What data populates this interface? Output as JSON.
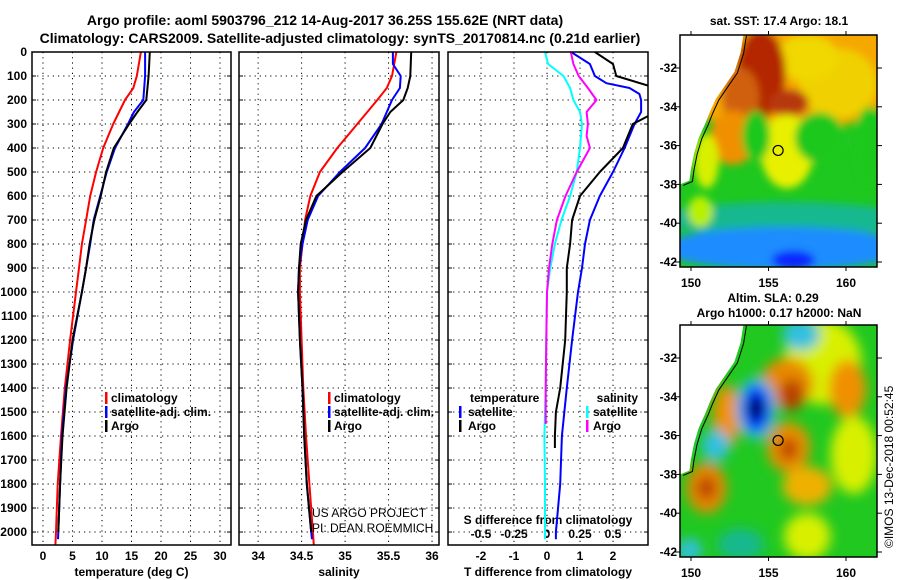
{
  "title": {
    "line1": "Argo profile: aoml 5903796_212 14-Aug-2017 36.25S 155.62E (NRT data)",
    "line2": "Climatology: CARS2009. Satellite-adjusted climatology: synTS_20170814.nc (0.21d earlier)"
  },
  "chart_data": [
    {
      "type": "line",
      "xlabel": "temperature (deg C)",
      "ylabel": "",
      "xlim": [
        -1.86,
        31.86
      ],
      "ylim": [
        2054,
        0
      ],
      "xticks": [
        "0",
        "5",
        "10",
        "15",
        "20",
        "25",
        "30"
      ],
      "yticks": [
        "0",
        "100",
        "200",
        "300",
        "400",
        "500",
        "600",
        "700",
        "800",
        "900",
        "1000",
        "1100",
        "1200",
        "1300",
        "1400",
        "1500",
        "1600",
        "1700",
        "1800",
        "1900",
        "2000"
      ],
      "grid": true,
      "legend_placement": "lower-left",
      "legend": [
        "climatology",
        "satellite-adj. clim.",
        "Argo"
      ],
      "series": [
        {
          "name": "climatology",
          "color": "#ff0000",
          "depth": [
            0,
            100,
            150,
            200,
            300,
            400,
            500,
            600,
            700,
            800,
            900,
            1000,
            1200,
            1400,
            1600,
            1800,
            2000,
            2054
          ],
          "values": [
            16.6,
            15.9,
            15.3,
            13.9,
            11.9,
            10.2,
            9.0,
            8.0,
            7.3,
            6.6,
            6.1,
            5.6,
            4.6,
            3.7,
            3.05,
            2.5,
            2.2,
            2.1
          ]
        },
        {
          "name": "satellite-adj. clim.",
          "color": "#0000ff",
          "depth": [
            0,
            100,
            200,
            250,
            300,
            400,
            500,
            600,
            700,
            800,
            900,
            1000,
            1200,
            1400,
            1600,
            1800,
            2000,
            2030
          ],
          "values": [
            17.3,
            17.3,
            17.0,
            15.4,
            14.4,
            12.2,
            10.8,
            9.7,
            8.6,
            8.0,
            7.3,
            6.6,
            5.1,
            3.9,
            3.2,
            2.9,
            2.6,
            2.55
          ]
        },
        {
          "name": "Argo",
          "color": "#000000",
          "depth": [
            0,
            100,
            200,
            250,
            300,
            400,
            500,
            600,
            700,
            800,
            900,
            1000,
            1200,
            1400,
            1600,
            1800,
            2000
          ],
          "values": [
            18.1,
            17.9,
            17.5,
            16.0,
            14.6,
            12.0,
            10.7,
            9.8,
            8.7,
            7.9,
            7.3,
            6.6,
            5.0,
            4.0,
            3.3,
            2.9,
            2.6
          ]
        }
      ]
    },
    {
      "type": "line",
      "xlabel": "salinity",
      "ylabel": "",
      "xlim": [
        33.78,
        36.08
      ],
      "ylim": [
        2054,
        0
      ],
      "xticks": [
        "34",
        "34.5",
        "35",
        "35.5",
        "36"
      ],
      "grid": true,
      "legend_placement": "lower-right",
      "legend": [
        "climatology",
        "satellite-adj. clim.",
        "Argo"
      ],
      "series": [
        {
          "name": "climatology",
          "color": "#ff0000",
          "depth": [
            0,
            100,
            150,
            200,
            300,
            400,
            500,
            600,
            700,
            800,
            900,
            1000,
            1200,
            1400,
            1600,
            1800,
            2000,
            2054
          ],
          "values": [
            35.59,
            35.54,
            35.48,
            35.37,
            35.14,
            34.91,
            34.71,
            34.6,
            34.54,
            34.51,
            34.48,
            34.48,
            34.5,
            34.52,
            34.55,
            34.59,
            34.63,
            34.64
          ]
        },
        {
          "name": "satellite-adj. clim.",
          "color": "#0000ff",
          "depth": [
            0,
            50,
            100,
            150,
            200,
            300,
            400,
            500,
            600,
            700,
            800,
            900,
            1000,
            1200,
            1400,
            1600,
            1800,
            2000,
            2030
          ],
          "values": [
            35.55,
            35.55,
            35.64,
            35.63,
            35.54,
            35.42,
            35.23,
            34.94,
            34.69,
            34.57,
            34.51,
            34.47,
            34.46,
            34.48,
            34.51,
            34.53,
            34.56,
            34.61,
            34.62
          ]
        },
        {
          "name": "Argo",
          "color": "#000000",
          "depth": [
            0,
            100,
            150,
            200,
            250,
            300,
            400,
            500,
            600,
            700,
            800,
            900,
            1000,
            1200,
            1400,
            1600,
            1800,
            2000
          ],
          "values": [
            35.76,
            35.75,
            35.72,
            35.67,
            35.52,
            35.43,
            35.29,
            34.97,
            34.67,
            34.55,
            34.49,
            34.47,
            34.46,
            34.48,
            34.51,
            34.53,
            34.56,
            34.61
          ]
        }
      ]
    },
    {
      "type": "line",
      "xlabel": "T difference from climatology",
      "secondary_xlabel": "S difference from climatology",
      "xlim": [
        -3,
        3.06
      ],
      "secondary_xlim": [
        -0.75,
        0.765
      ],
      "ylim": [
        2054,
        0
      ],
      "xticks": [
        "-2",
        "-1",
        "0",
        "1",
        "2"
      ],
      "secondary_xticks": [
        "-0.5",
        "-0.25",
        "0",
        "0.25",
        "0.5"
      ],
      "grid": true,
      "legend_placement": "lower",
      "legend_groups": [
        {
          "title": "temperature",
          "items": [
            "satellite",
            "Argo"
          ]
        },
        {
          "title": "salinity",
          "items": [
            "satellite",
            "Argo"
          ]
        }
      ],
      "series": [
        {
          "name": "temperature satellite",
          "quantity": "T",
          "color": "#0000ff",
          "depth": [
            0,
            50,
            100,
            130,
            150,
            175,
            200,
            250,
            300,
            400,
            500,
            600,
            700,
            800,
            900,
            1000,
            1200,
            1400,
            1600,
            1800,
            2000,
            2030
          ],
          "values": [
            0.73,
            1.3,
            1.45,
            1.8,
            2.5,
            2.8,
            2.85,
            2.85,
            2.65,
            2.35,
            2.0,
            1.6,
            1.3,
            1.15,
            1.06,
            0.94,
            0.76,
            0.6,
            0.45,
            0.4,
            0.27,
            0.27
          ]
        },
        {
          "name": "temperature Argo",
          "quantity": "T",
          "color": "#000000",
          "depth": [
            0,
            50,
            100,
            150,
            200,
            250,
            300,
            400,
            500,
            600,
            700,
            800,
            900,
            1000,
            1200,
            1400,
            1500,
            1600,
            1650
          ],
          "values": [
            1.45,
            2.0,
            2.1,
            3.3,
            3.6,
            3.3,
            2.6,
            2.3,
            1.6,
            1.0,
            0.76,
            0.7,
            0.6,
            0.6,
            0.55,
            0.4,
            0.27,
            0.24,
            0.24
          ]
        },
        {
          "name": "salinity satellite",
          "quantity": "S",
          "color": "#00ffff",
          "depth": [
            0,
            50,
            100,
            150,
            200,
            250,
            300,
            400,
            500,
            600,
            700,
            800,
            900,
            1000,
            1200,
            1400,
            1600,
            1800,
            2000,
            2030
          ],
          "values": [
            -0.015,
            0.008,
            0.125,
            0.175,
            0.2,
            0.25,
            0.265,
            0.25,
            0.225,
            0.175,
            0.11,
            0.06,
            0.025,
            0,
            -0.005,
            -0.01,
            -0.02,
            -0.015,
            -0.015,
            -0.015
          ]
        },
        {
          "name": "salinity Argo",
          "quantity": "S",
          "color": "#ff00ff",
          "depth": [
            0,
            50,
            100,
            150,
            200,
            250,
            300,
            350,
            400,
            500,
            600,
            700,
            800,
            900,
            1000,
            1200,
            1400,
            1550
          ],
          "values": [
            0.18,
            0.2,
            0.24,
            0.31,
            0.375,
            0.3,
            0.31,
            0.3,
            0.325,
            0.225,
            0.14,
            0.075,
            0.04,
            0.015,
            0,
            -0.005,
            -0.01,
            -0.01
          ]
        }
      ]
    }
  ],
  "credit": {
    "line1": "US ARGO PROJECT",
    "line2": "PI: DEAN ROEMMICH"
  },
  "maps": [
    {
      "title": "sat. SST: 17.4 Argo: 18.1",
      "lat_ticks": [
        "-32",
        "-34",
        "-36",
        "-38",
        "-40",
        "-42"
      ],
      "lon_ticks": [
        "150",
        "155",
        "160"
      ]
    },
    {
      "title_line1": "Altim. SLA: 0.29",
      "title_line2": "Argo h1000: 0.17 h2000: NaN",
      "lat_ticks": [
        "-32",
        "-34",
        "-36",
        "-38",
        "-40",
        "-42"
      ],
      "lon_ticks": [
        "150",
        "155",
        "160"
      ]
    }
  ],
  "profile_location": {
    "lon": 155.62,
    "lat": -36.25
  },
  "timestamp": "©IMOS 13-Dec-2018 00:52:45"
}
